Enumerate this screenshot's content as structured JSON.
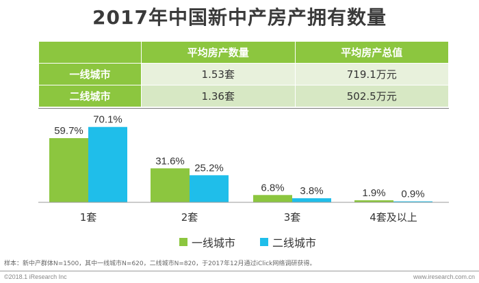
{
  "title": "2017年中国新中产房产拥有数量",
  "table": {
    "headers": [
      "",
      "平均房产数量",
      "平均房产总值"
    ],
    "rows": [
      {
        "label": "一线城市",
        "count": "1.53套",
        "value": "719.1万元"
      },
      {
        "label": "二线城市",
        "count": "1.36套",
        "value": "502.5万元"
      }
    ]
  },
  "chart_data": {
    "type": "bar",
    "categories": [
      "1套",
      "2套",
      "3套",
      "4套及以上"
    ],
    "series": [
      {
        "name": "一线城市",
        "values": [
          59.7,
          31.6,
          6.8,
          1.9
        ],
        "color": "#8cc63f"
      },
      {
        "name": "二线城市",
        "values": [
          70.1,
          25.2,
          3.8,
          0.9
        ],
        "color": "#1fbeea"
      }
    ],
    "value_suffix": "%",
    "ylim": [
      0,
      75
    ],
    "grid": false,
    "legend_position": "bottom"
  },
  "note": "样本：新中产群体N=1500，其中一线城市N=620，二线城市N=820，于2017年12月通过iClick网络调研获得。",
  "footer": {
    "left": "©2018.1 iResearch Inc",
    "right": "www.iresearch.com.cn"
  }
}
